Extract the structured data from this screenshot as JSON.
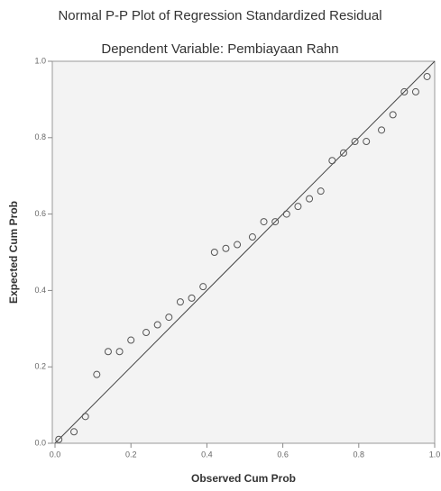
{
  "chart_data": {
    "type": "scatter",
    "title": "Normal P-P Plot of Regression Standardized Residual",
    "subtitle": "Dependent Variable: Pembiayaan Rahn",
    "x_label": "Observed Cum Prob",
    "y_label": "Expected Cum Prob",
    "x": [
      0.01,
      0.05,
      0.08,
      0.11,
      0.14,
      0.17,
      0.2,
      0.24,
      0.27,
      0.3,
      0.33,
      0.36,
      0.39,
      0.42,
      0.45,
      0.48,
      0.52,
      0.55,
      0.58,
      0.61,
      0.64,
      0.67,
      0.7,
      0.73,
      0.76,
      0.79,
      0.82,
      0.86,
      0.89,
      0.92,
      0.95,
      0.98
    ],
    "values": [
      0.01,
      0.03,
      0.07,
      0.18,
      0.24,
      0.24,
      0.27,
      0.29,
      0.31,
      0.33,
      0.37,
      0.38,
      0.41,
      0.5,
      0.51,
      0.52,
      0.54,
      0.58,
      0.58,
      0.6,
      0.62,
      0.64,
      0.66,
      0.74,
      0.76,
      0.79,
      0.79,
      0.82,
      0.86,
      0.92,
      0.92,
      0.96
    ],
    "color": "#555555",
    "xlim": [
      0,
      1
    ],
    "ylim": [
      0,
      1
    ],
    "xticks": [
      {
        "value": 0,
        "label": "0.0"
      },
      0.2,
      0.4,
      0.6,
      0.8,
      {
        "value": 1,
        "label": "1.0"
      }
    ],
    "yticks": [
      {
        "value": 0,
        "label": "0.0"
      },
      0.2,
      0.4,
      0.6,
      0.8,
      {
        "value": 1,
        "label": "1.0"
      }
    ]
  }
}
